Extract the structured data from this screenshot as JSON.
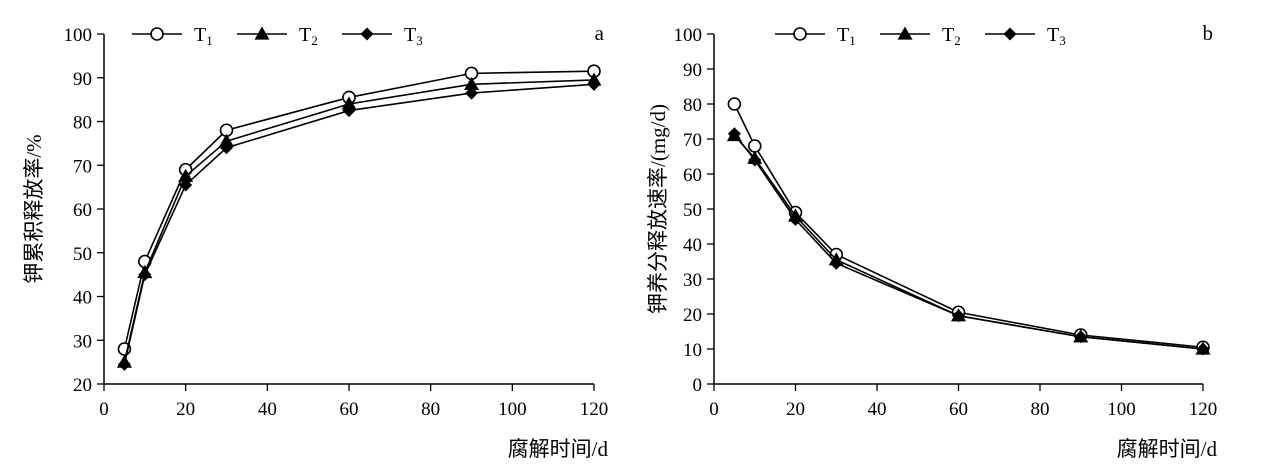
{
  "chart_data": [
    {
      "type": "line",
      "panel_label": "a",
      "xlabel": "腐解时间/d",
      "ylabel": "钾累积释放率/%",
      "xlim": [
        0,
        120
      ],
      "ylim": [
        20,
        100
      ],
      "xticks": [
        0,
        20,
        40,
        60,
        80,
        100,
        120
      ],
      "yticks": [
        20,
        30,
        40,
        50,
        60,
        70,
        80,
        90,
        100
      ],
      "grid": false,
      "legend_position": "top-center",
      "x": [
        5,
        10,
        20,
        30,
        60,
        90,
        120
      ],
      "series": [
        {
          "name": "T",
          "sub": "1",
          "marker": "circle-open",
          "values": [
            28.0,
            48.0,
            69.0,
            78.0,
            85.5,
            91.0,
            91.5
          ]
        },
        {
          "name": "T",
          "sub": "2",
          "marker": "triangle",
          "values": [
            25.0,
            45.5,
            67.5,
            75.5,
            84.0,
            88.5,
            89.5
          ]
        },
        {
          "name": "T",
          "sub": "3",
          "marker": "diamond",
          "values": [
            24.5,
            45.0,
            65.5,
            74.0,
            82.5,
            86.5,
            88.5
          ]
        }
      ]
    },
    {
      "type": "line",
      "panel_label": "b",
      "xlabel": "腐解时间/d",
      "ylabel": "钾养分释放速率/(mg/d)",
      "xlim": [
        0,
        120
      ],
      "ylim": [
        0,
        100
      ],
      "xticks": [
        0,
        20,
        40,
        60,
        80,
        100,
        120
      ],
      "yticks": [
        0,
        10,
        20,
        30,
        40,
        50,
        60,
        70,
        80,
        90,
        100
      ],
      "grid": false,
      "legend_position": "top-center",
      "x": [
        5,
        10,
        20,
        30,
        60,
        90,
        120
      ],
      "series": [
        {
          "name": "T",
          "sub": "1",
          "marker": "circle-open",
          "values": [
            80.0,
            68.0,
            49.0,
            37.0,
            20.5,
            14.0,
            10.5
          ]
        },
        {
          "name": "T",
          "sub": "2",
          "marker": "triangle",
          "values": [
            71.0,
            64.5,
            48.0,
            35.5,
            19.5,
            13.5,
            10.0
          ]
        },
        {
          "name": "T",
          "sub": "3",
          "marker": "diamond",
          "values": [
            71.5,
            64.0,
            47.0,
            34.5,
            19.5,
            13.5,
            10.0
          ]
        }
      ]
    }
  ]
}
